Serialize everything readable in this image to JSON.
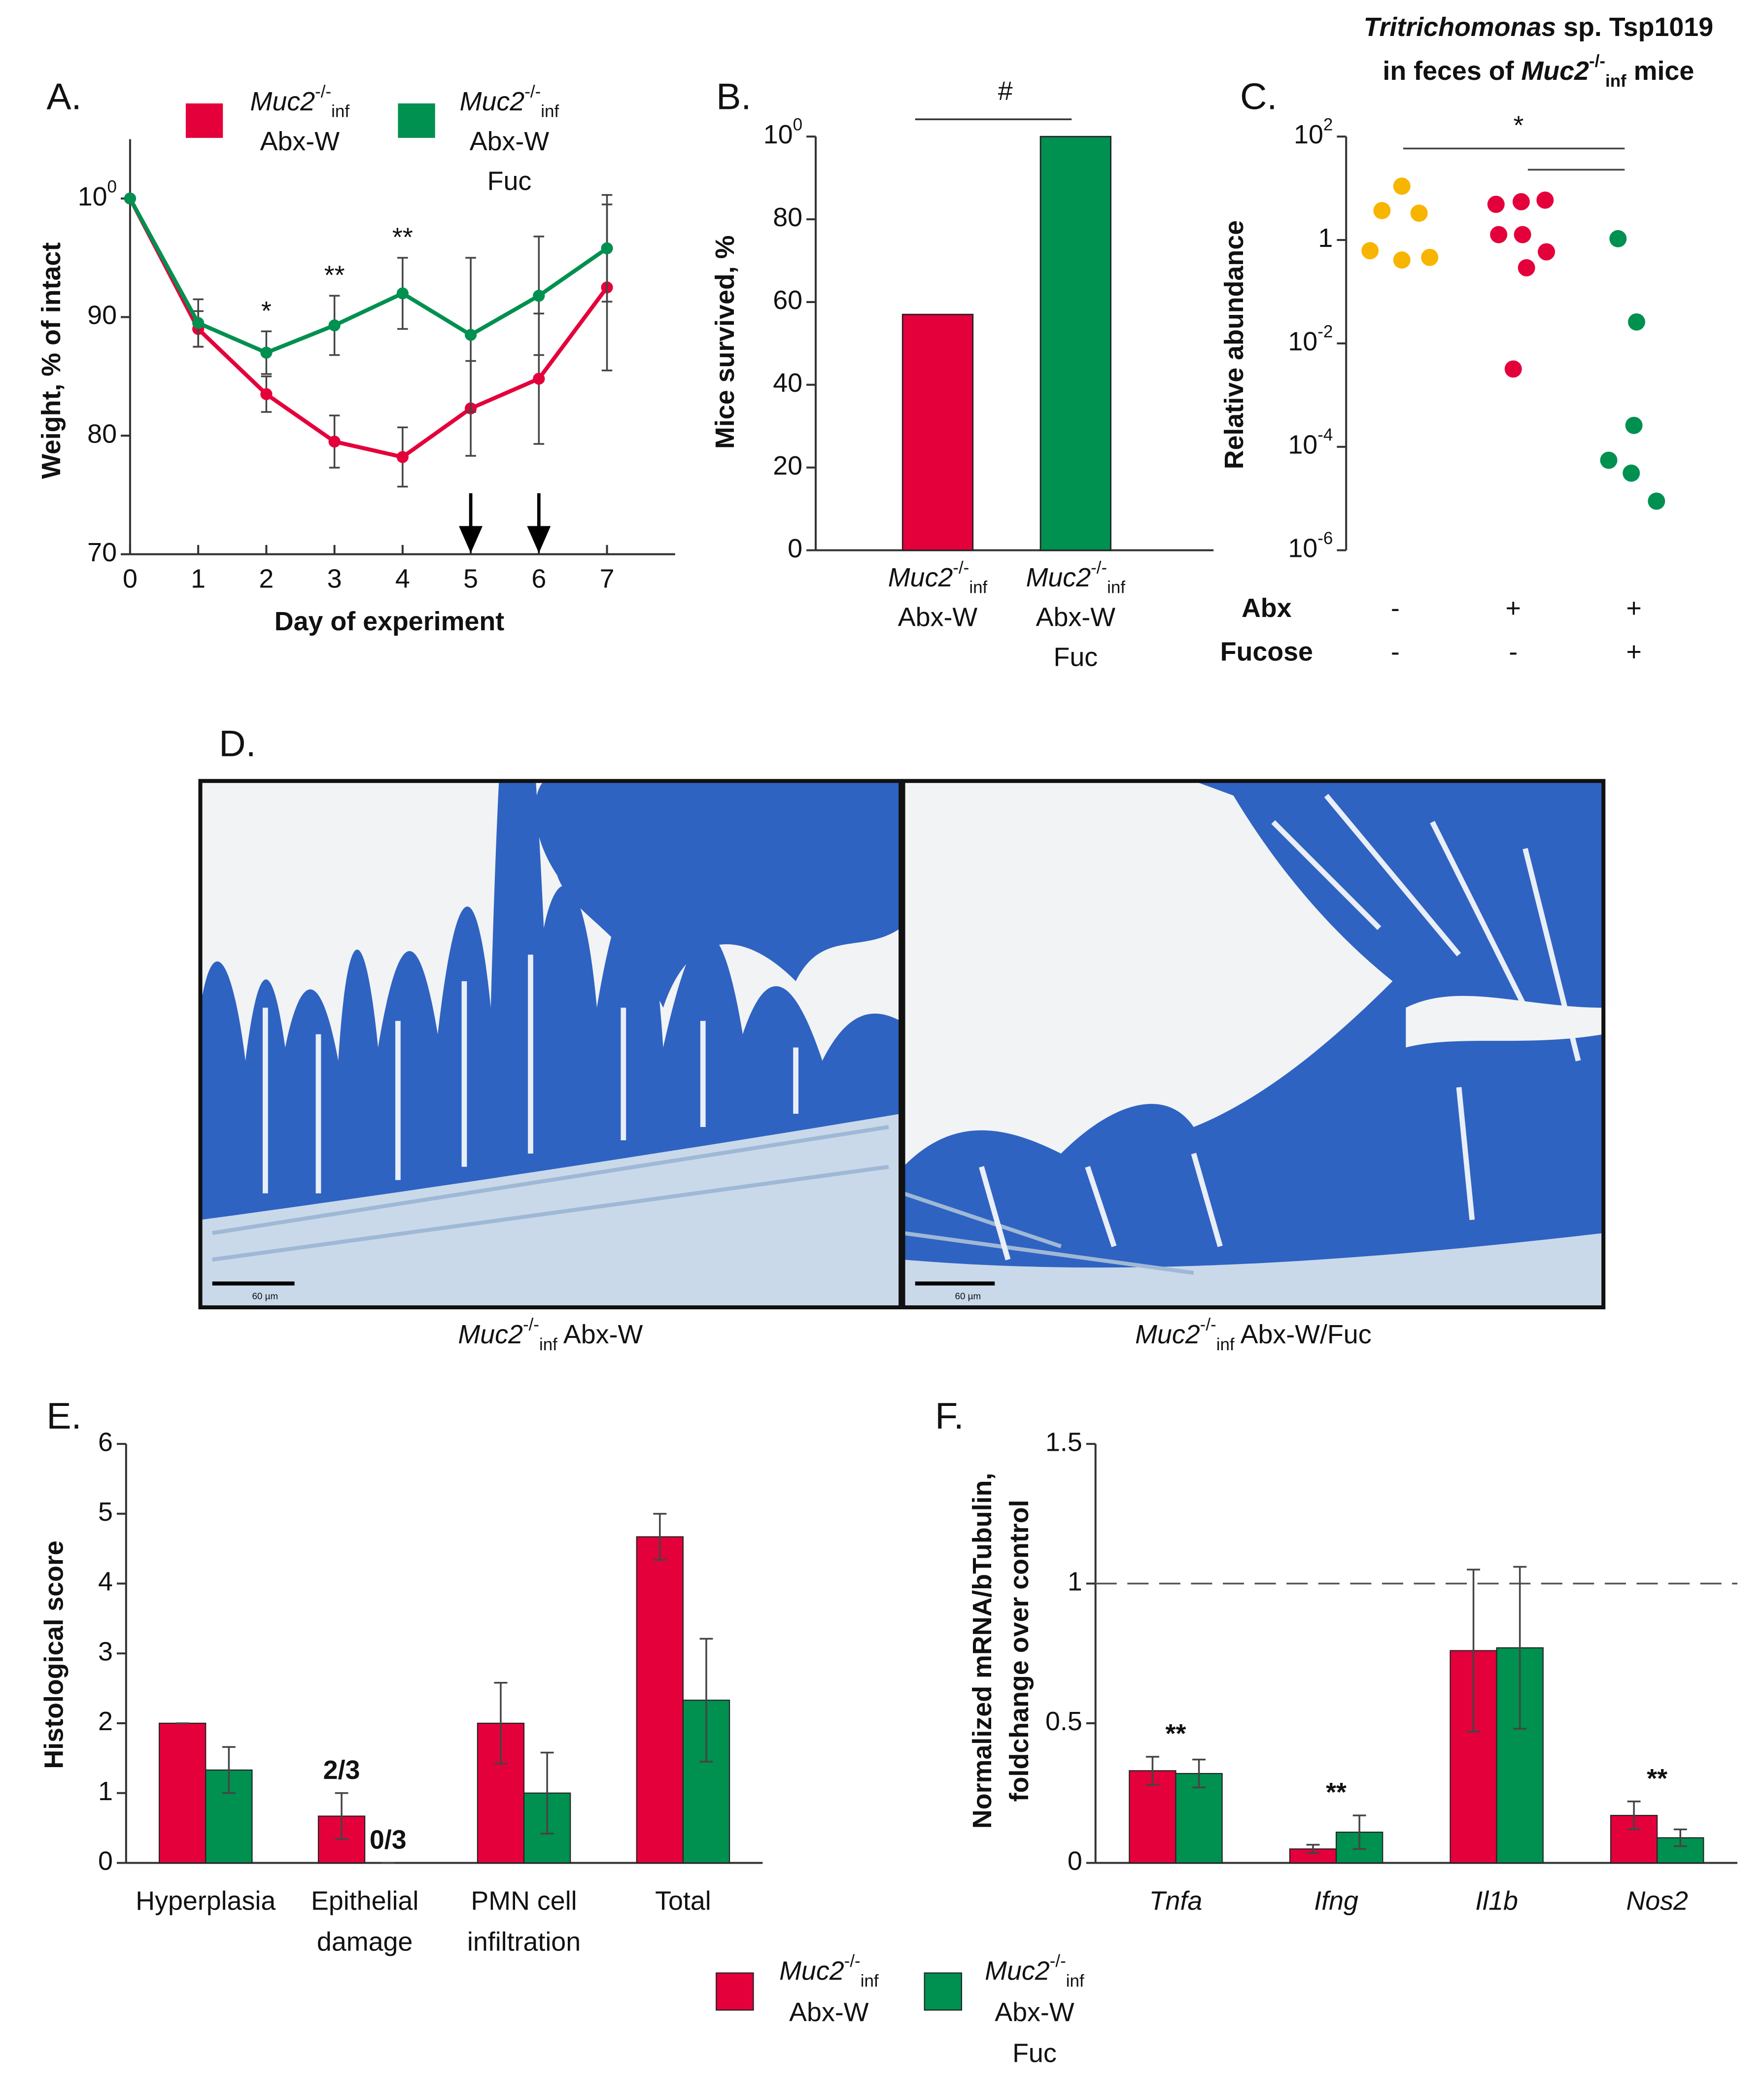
{
  "chart_data": [
    {
      "type": "line",
      "label": "A.",
      "x": [
        0,
        1,
        2,
        3,
        4,
        5,
        6,
        7
      ],
      "xlim": [
        0,
        8
      ],
      "xticks": [
        0,
        1,
        2,
        3,
        4,
        5,
        6,
        7
      ],
      "ylim": [
        70,
        105
      ],
      "yticks": [
        70,
        80,
        90,
        100
      ],
      "xlabel": "Day of experiment",
      "ylabel": "Weight, % of intact",
      "series": [
        {
          "name": [
            "Muc2-/-inf",
            "Abx-W"
          ],
          "color": "#e4003a",
          "values": [
            100,
            89,
            83.5,
            79.5,
            78.2,
            82.3,
            84.8,
            92.5
          ],
          "errors": [
            0,
            1.5,
            1.5,
            2.2,
            2.5,
            4,
            5.5,
            7
          ]
        },
        {
          "name": [
            "Muc2-/-inf",
            "Abx-W",
            "Fuc"
          ],
          "color": "#00904f",
          "values": [
            100,
            89.5,
            87,
            89.3,
            92,
            88.5,
            91.8,
            95.8
          ],
          "errors": [
            0,
            2,
            1.8,
            2.5,
            3,
            6.5,
            5,
            4.5
          ]
        }
      ],
      "annotations": [
        {
          "text": "*",
          "x": 2
        },
        {
          "text": "**",
          "x": 3
        },
        {
          "text": "**",
          "x": 4
        }
      ],
      "arrows": [
        5,
        6
      ]
    },
    {
      "type": "bar",
      "label": "B.",
      "categories": [
        [
          "Muc2-/-inf",
          "Abx-W"
        ],
        [
          "Muc2-/-inf",
          "Abx-W",
          "Fuc"
        ]
      ],
      "values": [
        57,
        100
      ],
      "colors": [
        "#e4003a",
        "#00904f"
      ],
      "ylim": [
        0,
        100
      ],
      "yticks": [
        0,
        20,
        40,
        60,
        80,
        100
      ],
      "ylabel": "Mice survived, %",
      "annotation": "#"
    },
    {
      "type": "scatter",
      "label": "C.",
      "title": [
        "Tritrichomonas sp. Tsp1019",
        "in feces of Muc2-/-inf mice"
      ],
      "ylabel": "Relative abundance",
      "log_y": true,
      "ylim": [
        1e-06,
        100
      ],
      "yticks": [
        {
          "value": 1e-06,
          "label": "10-6"
        },
        {
          "value": 0.0001,
          "label": "10-4"
        },
        {
          "value": 0.01,
          "label": "10-2"
        },
        1,
        {
          "value": 100,
          "label": "102"
        }
      ],
      "series": [
        {
          "color": "#f7b500",
          "values": [
            11,
            3.7,
            3.3,
            0.62,
            0.41,
            0.46
          ]
        },
        {
          "color": "#e4003a",
          "values": [
            4.9,
            5.5,
            5.9,
            1.27,
            1.27,
            0.59,
            0.29,
            0.0032
          ]
        },
        {
          "color": "#00904f",
          "values": [
            1.06,
            0.026,
            0.00026,
            5.5e-05,
            3.1e-05,
            8.9e-06
          ]
        }
      ],
      "annotation": "*",
      "rows": [
        {
          "label": "Abx",
          "values": [
            "-",
            "+",
            "+"
          ]
        },
        {
          "label": "Fucose",
          "values": [
            "-",
            "-",
            "+"
          ]
        }
      ]
    },
    {
      "type": "grouped_bar",
      "label": "E.",
      "categories": [
        "Hyperplasia",
        [
          "Epithelial",
          "damage"
        ],
        [
          "PMN cell",
          "infiltration"
        ],
        "Total"
      ],
      "ylim": [
        0,
        6
      ],
      "yticks": [
        0,
        1,
        2,
        3,
        4,
        5,
        6
      ],
      "ylabel": "Histological score",
      "series": [
        {
          "name": [
            "Muc2-/-inf",
            "Abx-W"
          ],
          "color": "#e4003a",
          "values": [
            2,
            0.67,
            2,
            4.67
          ],
          "errors": [
            0,
            0.33,
            0.58,
            0.33
          ]
        },
        {
          "name": [
            "Muc2-/-inf",
            "Abx-W",
            "Fuc"
          ],
          "color": "#00904f",
          "values": [
            1.33,
            0,
            1,
            2.33
          ],
          "errors": [
            0.33,
            0,
            0.58,
            0.88
          ]
        }
      ],
      "annotations": [
        {
          "text": "2/3",
          "category": 1,
          "series": 0
        },
        {
          "text": "0/3",
          "category": 1,
          "series": 1
        }
      ]
    },
    {
      "type": "grouped_bar",
      "label": "F.",
      "categories": [
        "Tnfa",
        "Ifng",
        "Il1b",
        "Nos2"
      ],
      "ylim": [
        0,
        1.5
      ],
      "yticks": [
        0,
        0.5,
        1,
        1.5
      ],
      "ylabel": [
        "Normalized mRNA/bTubulin,",
        "foldchange over control"
      ],
      "reference_line": 1,
      "series": [
        {
          "color": "#e4003a",
          "values": [
            0.33,
            0.05,
            0.76,
            0.17
          ],
          "errors": [
            0.05,
            0.015,
            0.29,
            0.05
          ]
        },
        {
          "color": "#00904f",
          "values": [
            0.32,
            0.11,
            0.77,
            0.09
          ],
          "errors": [
            0.05,
            0.06,
            0.29,
            0.03
          ]
        }
      ],
      "annotations": [
        {
          "text": "**",
          "category": 0
        },
        {
          "text": "**",
          "category": 1
        },
        {
          "text": "**",
          "category": 3
        }
      ]
    }
  ],
  "panel_d": {
    "label": "D.",
    "images": [
      {
        "caption": "Muc2-/-inf Abx-W",
        "scale_bar": "60 µm"
      },
      {
        "caption": "Muc2-/-inf Abx-W/Fuc",
        "scale_bar": "60 µm"
      }
    ]
  }
}
